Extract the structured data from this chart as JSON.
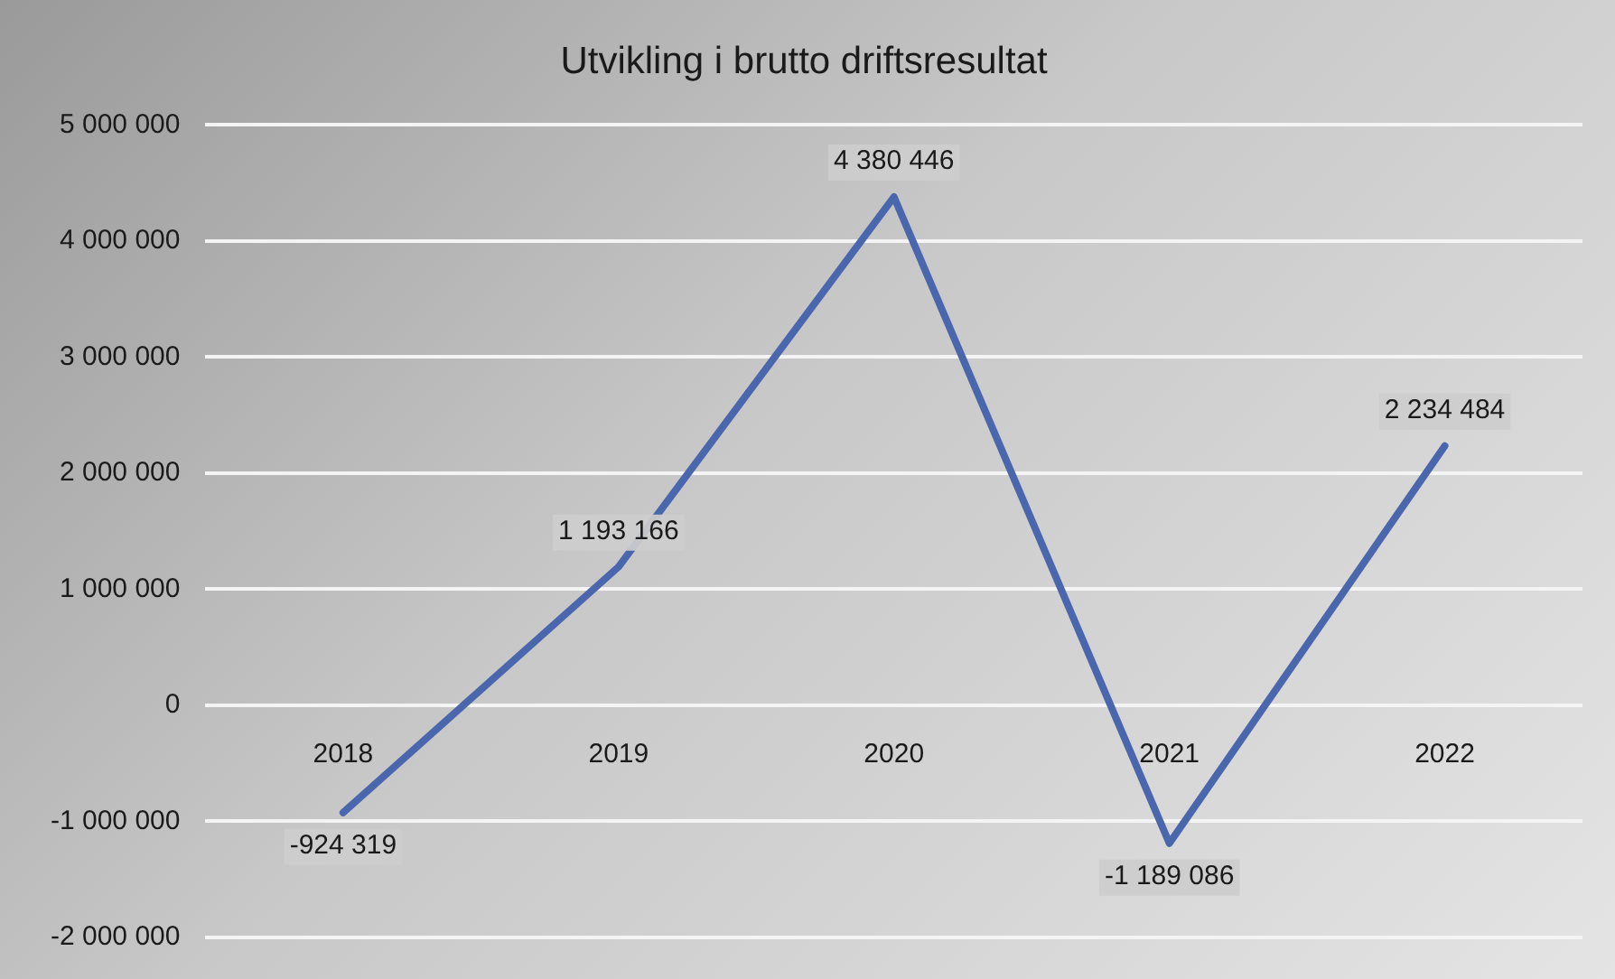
{
  "chart_data": {
    "type": "line",
    "title": "Utvikling i brutto driftsresultat",
    "categories": [
      "2018",
      "2019",
      "2020",
      "2021",
      "2022"
    ],
    "series": [
      {
        "color": "#4a66ac",
        "values": [
          -924319,
          1193166,
          4380446,
          -1189086,
          2234484
        ],
        "value_labels": [
          "-924 319",
          "1 193 166",
          "4 380 446",
          "-1 189 086",
          "2 234 484"
        ]
      }
    ],
    "ylim": [
      -2000000,
      5000000
    ],
    "yticks": [
      {
        "value": -2000000,
        "label": "-2 000 000"
      },
      {
        "value": -1000000,
        "label": "-1 000 000"
      },
      {
        "value": 0,
        "label": "0"
      },
      {
        "value": 1000000,
        "label": "1 000 000"
      },
      {
        "value": 2000000,
        "label": "2 000 000"
      },
      {
        "value": 3000000,
        "label": "3 000 000"
      },
      {
        "value": 4000000,
        "label": "4 000 000"
      },
      {
        "value": 5000000,
        "label": "5 000 000"
      }
    ],
    "grid": "y",
    "legend": false,
    "marker": "none",
    "line_style": "solid"
  }
}
